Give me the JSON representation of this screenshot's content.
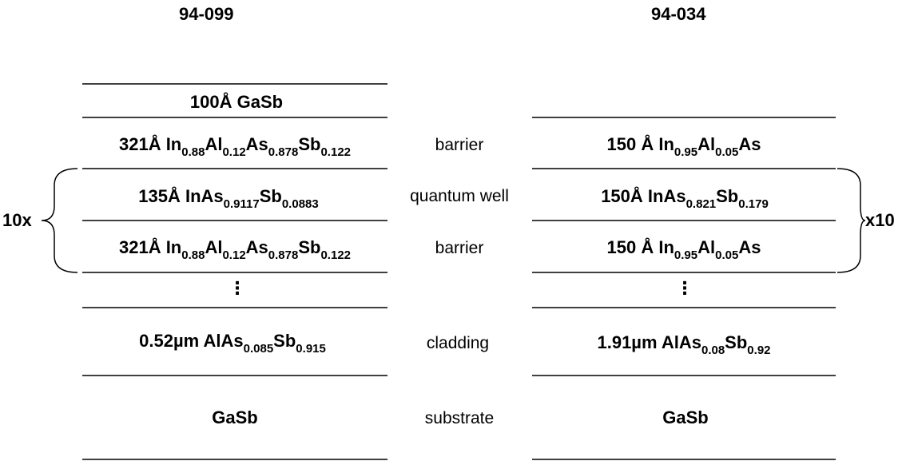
{
  "titles": {
    "left": "94-099",
    "right": "94-034"
  },
  "roles": {
    "barrier_top": "barrier",
    "quantum_well": "quantum well",
    "barrier_bottom": "barrier",
    "cladding": "cladding",
    "substrate": "substrate"
  },
  "repeat": {
    "left": "10x",
    "right": "x10"
  },
  "dots": "⋮",
  "left": {
    "cap": {
      "lead": "100Å GaSb"
    },
    "barrier_top": {
      "lead": "321Å In",
      "s1": "0.88",
      "e2": "Al",
      "s2": "0.12",
      "e3": "As",
      "s3": "0.878",
      "e4": "Sb",
      "s4": "0.122"
    },
    "well": {
      "lead": "135Å InAs",
      "s1": "0.9117",
      "e2": "Sb",
      "s2": "0.0883"
    },
    "barrier_bottom": {
      "lead": "321Å In",
      "s1": "0.88",
      "e2": "Al",
      "s2": "0.12",
      "e3": "As",
      "s3": "0.878",
      "e4": "Sb",
      "s4": "0.122"
    },
    "cladding": {
      "lead": "0.52µm AlAs",
      "s1": "0.085",
      "e2": "Sb",
      "s2": "0.915"
    },
    "substrate": {
      "lead": "GaSb"
    }
  },
  "right": {
    "barrier_top": {
      "lead": "150 Å In",
      "s1": "0.95",
      "e2": "Al",
      "s2": "0.05",
      "e3": "As"
    },
    "well": {
      "lead": "150Å InAs",
      "s1": "0.821",
      "e2": "Sb",
      "s2": "0.179"
    },
    "barrier_bottom": {
      "lead": "150 Å In",
      "s1": "0.95",
      "e2": "Al",
      "s2": "0.05",
      "e3": "As"
    },
    "cladding": {
      "lead": "1.91µm AlAs",
      "s1": "0.08",
      "e2": "Sb",
      "s2": "0.92"
    },
    "substrate": {
      "lead": "GaSb"
    }
  }
}
